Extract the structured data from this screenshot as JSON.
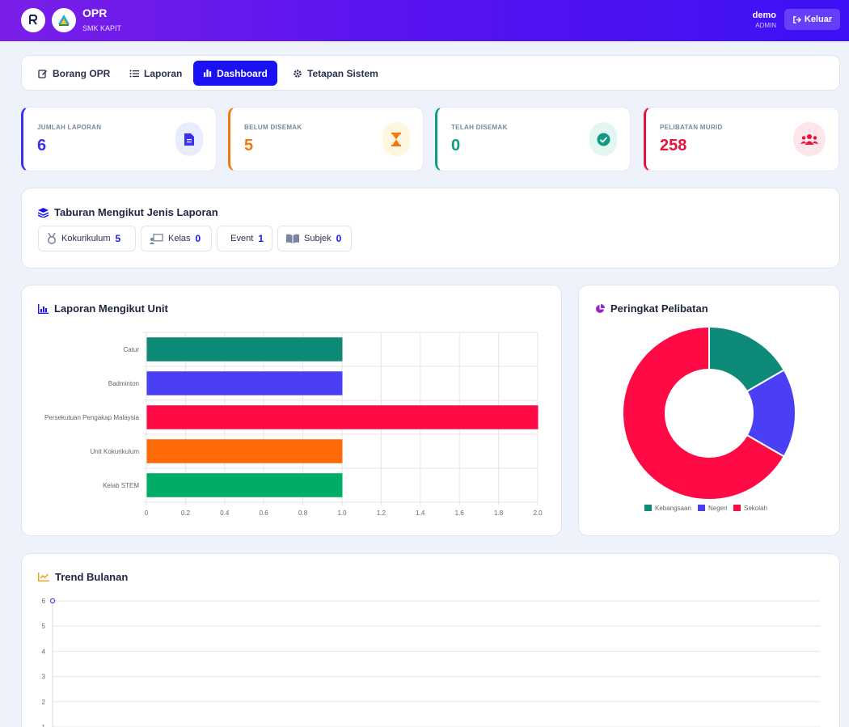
{
  "header": {
    "title": "OPR",
    "subtitle": "SMK KAPIT",
    "user_name": "demo",
    "user_role": "ADMIN",
    "logout_label": "Keluar",
    "gradient_start": "#7a1fe8",
    "gradient_end": "#3d10f5"
  },
  "nav": {
    "items": [
      {
        "label": "Borang OPR",
        "icon": "edit-icon"
      },
      {
        "label": "Laporan",
        "icon": "list-icon"
      },
      {
        "label": "Dashboard",
        "icon": "bar-chart-icon",
        "active": true
      },
      {
        "label": "Tetapan Sistem",
        "icon": "gear-icon"
      }
    ]
  },
  "stats": [
    {
      "label": "JUMLAH LAPORAN",
      "value": "6",
      "color": "#3b2ff0",
      "icon": "document-icon"
    },
    {
      "label": "BELUM DISEMAK",
      "value": "5",
      "color": "#f07a10",
      "icon": "hourglass-icon"
    },
    {
      "label": "TELAH DISEMAK",
      "value": "0",
      "color": "#0f9a84",
      "icon": "check-circle-icon"
    },
    {
      "label": "PELIBATAN MURID",
      "value": "258",
      "color": "#e8123c",
      "icon": "users-icon"
    }
  ],
  "distribution": {
    "title": "Taburan Mengikut Jenis Laporan",
    "items": [
      {
        "label": "Kokurikulum",
        "count": "5",
        "icon": "medal-icon"
      },
      {
        "label": "Kelas",
        "count": "0",
        "icon": "classroom-icon"
      },
      {
        "label": "Event",
        "count": "1",
        "icon": "calendar-icon"
      },
      {
        "label": "Subjek",
        "count": "0",
        "icon": "book-icon"
      }
    ]
  },
  "unit_chart": {
    "title": "Laporan Mengikut Unit"
  },
  "pie_chart": {
    "title": "Peringkat Pelibatan"
  },
  "trend_chart": {
    "title": "Trend Bulanan"
  },
  "chart_data": [
    {
      "type": "bar",
      "orientation": "horizontal",
      "categories": [
        "Catur",
        "Badminton",
        "Persekutuan Pengakap Malaysia",
        "Unit Kokurikulum",
        "Kelab STEM"
      ],
      "values": [
        1,
        1,
        2,
        1,
        1
      ],
      "colors": [
        "#0d8a78",
        "#4b3ff5",
        "#ff0a45",
        "#ff6a08",
        "#00ad66"
      ],
      "xlim": [
        0,
        2
      ],
      "xticks": [
        "0",
        "0.2",
        "0.4",
        "0.6",
        "0.8",
        "1.0",
        "1.2",
        "1.4",
        "1.6",
        "1.8",
        "2.0"
      ],
      "grid": true
    },
    {
      "type": "pie",
      "donut": true,
      "categories": [
        "Kebangsaan",
        "Negeri",
        "Sekolah"
      ],
      "values": [
        1,
        1,
        4
      ],
      "colors": [
        "#0d8a78",
        "#4b3ff5",
        "#ff0a45"
      ],
      "legend": "bottom"
    },
    {
      "type": "line",
      "x": [
        "point-1"
      ],
      "values": [
        6
      ],
      "yticks": [
        "6",
        "5",
        "4",
        "3",
        "2",
        "1"
      ],
      "ylim": [
        1,
        6
      ],
      "color": "#4b3ff5",
      "grid": true
    }
  ]
}
